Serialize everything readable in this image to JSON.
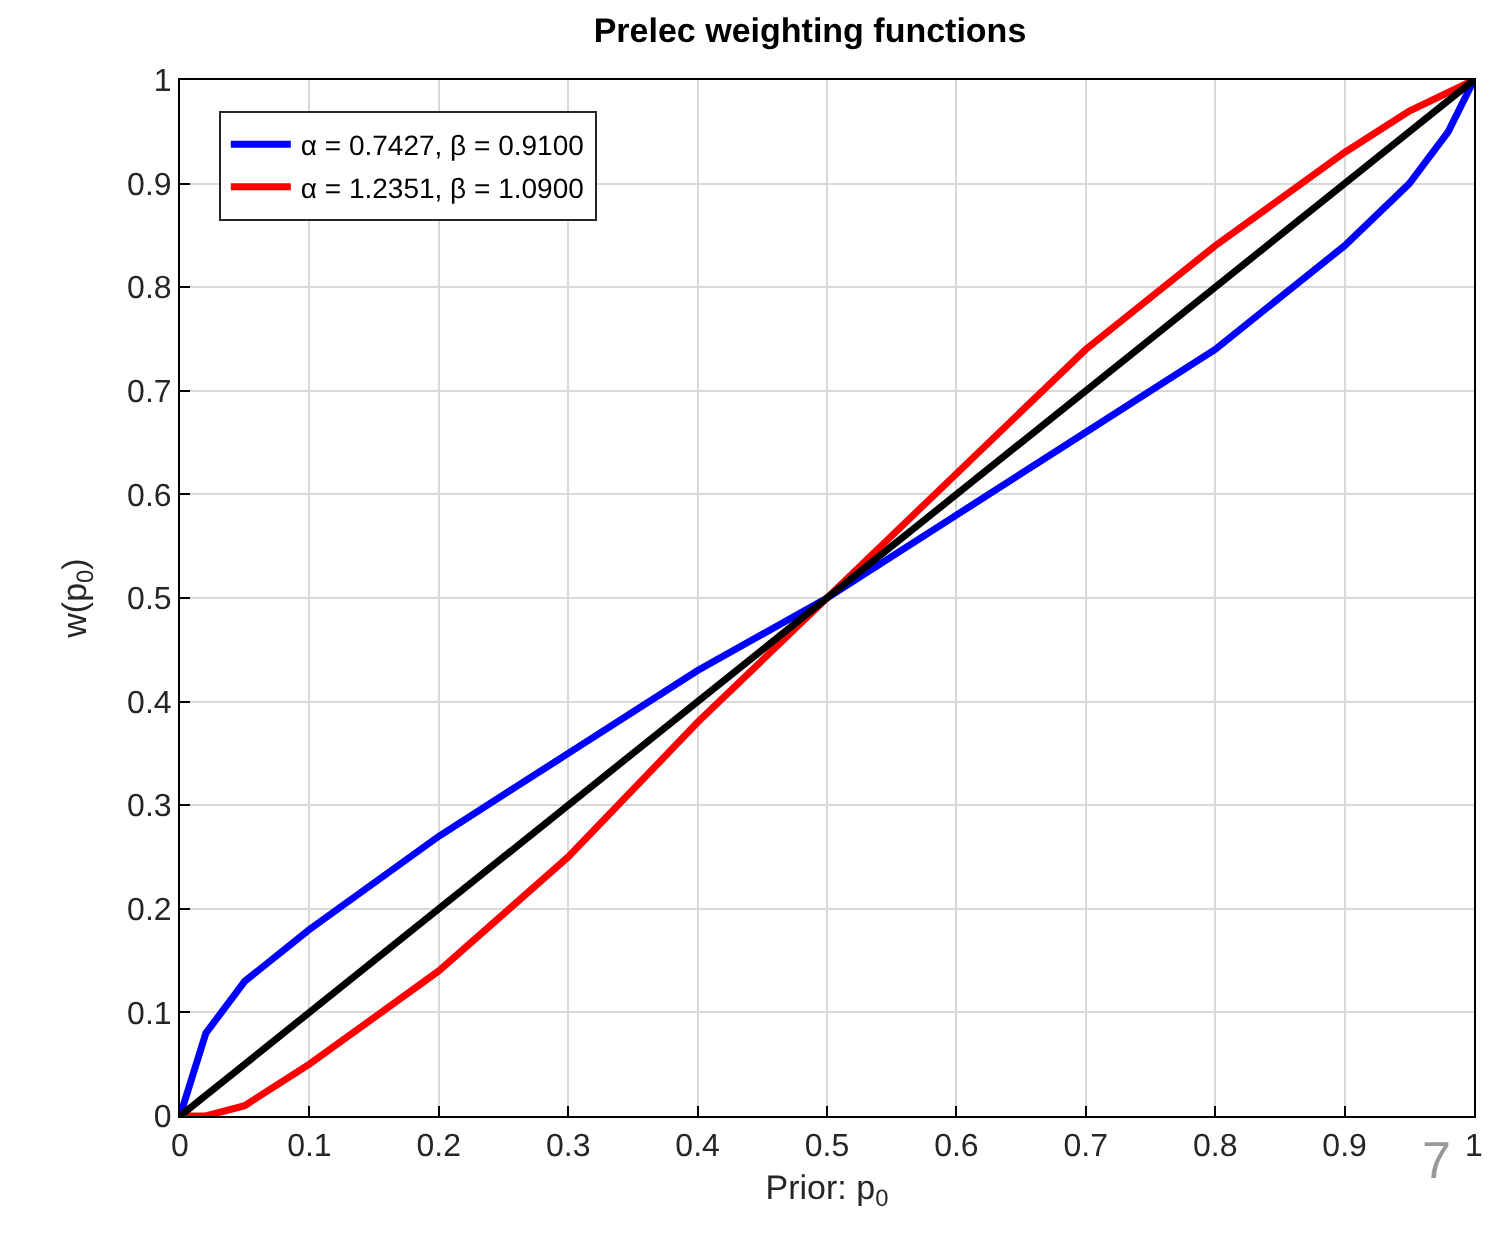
{
  "chart_data": {
    "type": "line",
    "title": "Prelec weighting functions",
    "xlabel": "Prior: p$_{0}$",
    "ylabel": "w(p$_{0}$)",
    "xlim": [
      0,
      1
    ],
    "ylim": [
      0,
      1
    ],
    "xticks": [
      0,
      0.1,
      0.2,
      0.3,
      0.4,
      0.5,
      0.6,
      0.7,
      0.8,
      0.9,
      1
    ],
    "yticks": [
      0,
      0.1,
      0.2,
      0.3,
      0.4,
      0.5,
      0.6,
      0.7,
      0.8,
      0.9,
      1
    ],
    "grid": true,
    "legend": "top left",
    "marker": "none",
    "line_style": "solid",
    "series": [
      {
        "name": "α = 0.7427, β = 0.9100",
        "color": "#0000ff",
        "x": [
          0,
          0.02,
          0.05,
          0.1,
          0.2,
          0.3,
          0.4,
          0.5,
          0.6,
          0.7,
          0.8,
          0.9,
          0.95,
          0.98,
          1
        ],
        "values": [
          0,
          0.08,
          0.13,
          0.18,
          0.27,
          0.35,
          0.43,
          0.5,
          0.58,
          0.66,
          0.74,
          0.84,
          0.9,
          0.95,
          1
        ]
      },
      {
        "name": "α = 1.2351, β = 1.0900",
        "color": "#ff0000",
        "x": [
          0,
          0.02,
          0.05,
          0.1,
          0.2,
          0.3,
          0.4,
          0.5,
          0.6,
          0.7,
          0.8,
          0.9,
          0.95,
          1
        ],
        "values": [
          0,
          0.0,
          0.01,
          0.05,
          0.14,
          0.25,
          0.38,
          0.5,
          0.62,
          0.74,
          0.84,
          0.93,
          0.97,
          1
        ]
      },
      {
        "color": "#000000",
        "x": [
          0,
          1
        ],
        "values": [
          0,
          1
        ]
      }
    ],
    "annotations": [
      "7"
    ]
  }
}
